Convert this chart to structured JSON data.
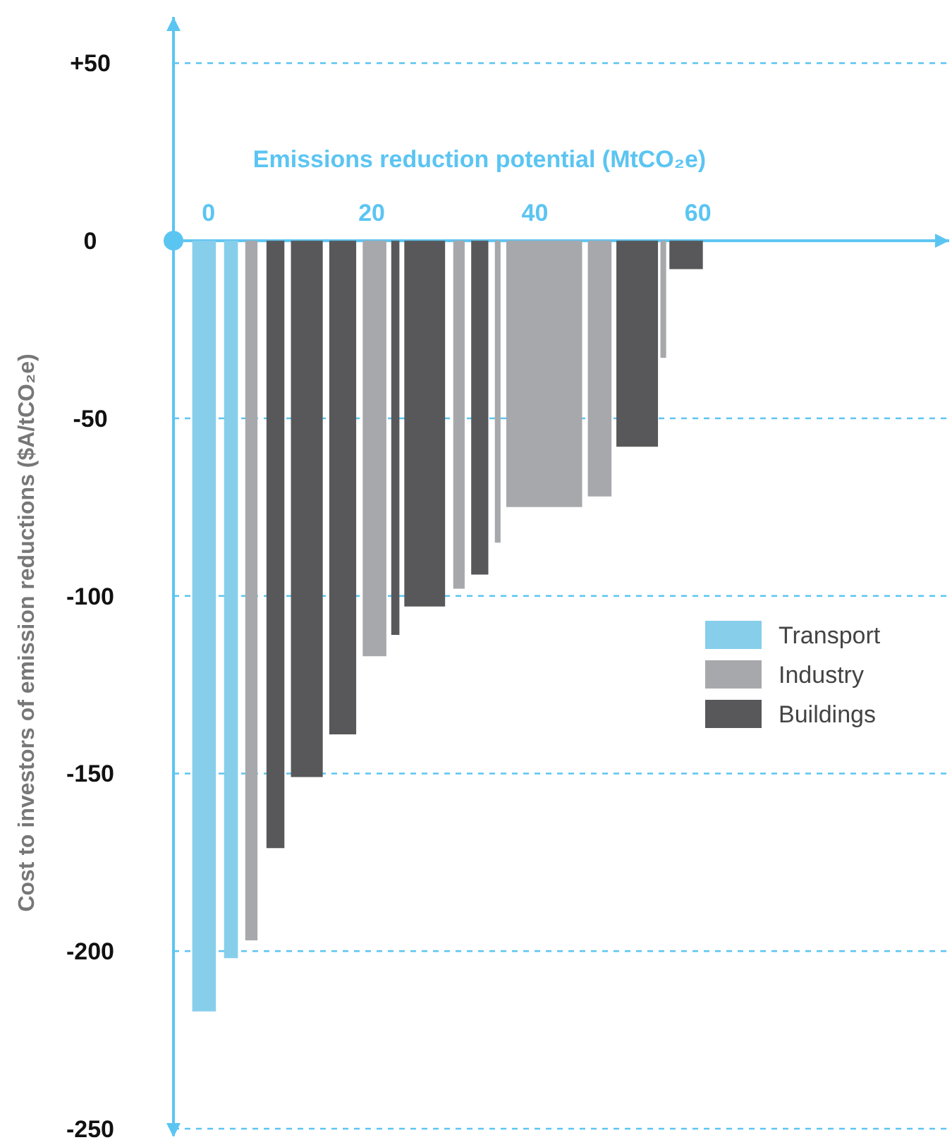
{
  "chart_data": {
    "type": "area",
    "xlabel": "Emissions reduction potential (MtCO₂e)",
    "ylabel": "Cost to investors of emission reductions ($A/tCO₂e)",
    "xlim": [
      -4.3,
      90.8
    ],
    "ylim": [
      -252,
      63
    ],
    "xticks": [
      0,
      20,
      40,
      60
    ],
    "yticks": [
      {
        "value": 50,
        "label": "+50"
      },
      0,
      -50,
      -100,
      -150,
      -200,
      -250
    ],
    "grid": "y",
    "legend": "right",
    "series": [
      {
        "name": "Transport",
        "color": "#87ceeb",
        "x": [
          -2.0,
          -2.0,
          0.9,
          0.9,
          1.9,
          1.9,
          3.6,
          3.6
        ],
        "values": [
          0,
          -217,
          -217,
          0,
          0,
          -202,
          -202,
          0
        ]
      },
      {
        "name": "Industry",
        "color": "#a7a8ab",
        "x": [
          4.5,
          4.5,
          6.0,
          6.0,
          18.9,
          18.9,
          21.8,
          21.8,
          30.0,
          30.0,
          31.4,
          31.4,
          35.1,
          35.1,
          35.8,
          35.8,
          36.5,
          36.5,
          45.8,
          45.8,
          46.5,
          46.5,
          49.4,
          49.4,
          55.4,
          55.4,
          56.1,
          56.1
        ],
        "values": [
          0,
          -197,
          -197,
          0,
          0,
          -117,
          -117,
          0,
          0,
          -98,
          -98,
          0,
          0,
          -85,
          -85,
          0,
          0,
          -75,
          -75,
          0,
          0,
          -72,
          -72,
          0,
          0,
          -33,
          -33,
          0
        ]
      },
      {
        "name": "Buildings",
        "color": "#58585a",
        "x": [
          7.1,
          7.1,
          9.3,
          9.3,
          10.1,
          10.1,
          14.0,
          14.0,
          14.8,
          14.8,
          18.1,
          18.1,
          22.4,
          22.4,
          23.4,
          23.4,
          24.0,
          24.0,
          29.0,
          29.0,
          32.2,
          32.2,
          34.3,
          34.3,
          50.0,
          50.0,
          55.1,
          55.1,
          56.5,
          56.5,
          60.6,
          60.6
        ],
        "values": [
          0,
          -171,
          -171,
          0,
          0,
          -151,
          -151,
          0,
          0,
          -139,
          -139,
          0,
          0,
          -111,
          -111,
          0,
          0,
          -103,
          -103,
          0,
          0,
          -94,
          -94,
          0,
          0,
          -58,
          -58,
          0,
          0,
          -8,
          -8,
          0
        ]
      }
    ]
  }
}
